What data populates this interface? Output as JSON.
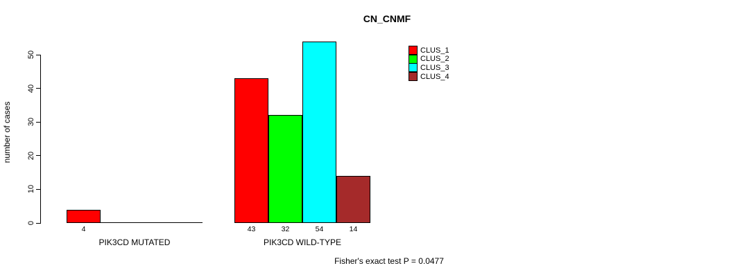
{
  "chart_data": {
    "type": "bar",
    "title": "CN_CNMF",
    "ylabel": "number of cases",
    "xlabel": "",
    "yticks": [
      0,
      10,
      20,
      30,
      40,
      50
    ],
    "ylim": [
      0,
      54
    ],
    "grid": false,
    "legend_position": "top-right",
    "categories": [
      "PIK3CD MUTATED",
      "PIK3CD WILD-TYPE"
    ],
    "series": [
      {
        "name": "CLUS_1",
        "color": "#ff0000",
        "values": [
          4,
          43
        ]
      },
      {
        "name": "CLUS_2",
        "color": "#00ff00",
        "values": [
          0,
          32
        ]
      },
      {
        "name": "CLUS_3",
        "color": "#00ffff",
        "values": [
          0,
          54
        ]
      },
      {
        "name": "CLUS_4",
        "color": "#a52a2a",
        "values": [
          0,
          14
        ]
      }
    ],
    "bar_value_labels_shown_when_positive": true,
    "annotation": "Fisher's exact test P = 0.0477"
  }
}
